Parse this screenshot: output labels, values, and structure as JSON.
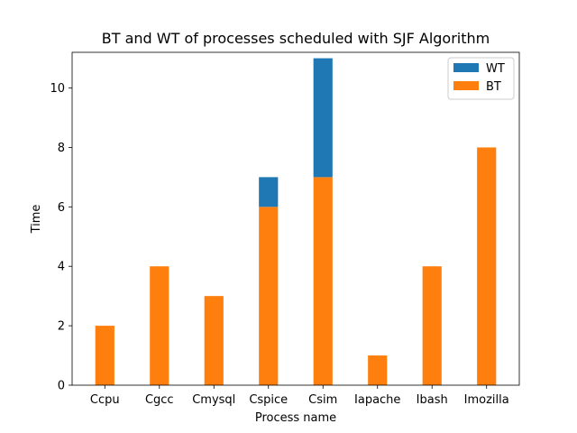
{
  "chart_data": {
    "type": "bar",
    "stacked": true,
    "title": "BT and WT of processes scheduled with SJF Algorithm",
    "xlabel": "Process name",
    "ylabel": "Time",
    "categories": [
      "Ccpu",
      "Cgcc",
      "Cmysql",
      "Cspice",
      "Csim",
      "Iapache",
      "Ibash",
      "Imozilla"
    ],
    "series": [
      {
        "name": "BT",
        "color": "#ff7f0e",
        "values": [
          2,
          4,
          3,
          6,
          7,
          1,
          4,
          8
        ]
      },
      {
        "name": "WT",
        "color": "#1f77b4",
        "values": [
          0,
          0,
          0,
          1,
          4,
          0,
          0,
          0
        ]
      }
    ],
    "ylim": [
      0,
      11.2
    ],
    "yticks": [
      "0",
      "2",
      "4",
      "6",
      "8",
      "10"
    ],
    "legend": {
      "position": "upper right",
      "order": [
        "WT",
        "BT"
      ]
    },
    "grid": false
  }
}
